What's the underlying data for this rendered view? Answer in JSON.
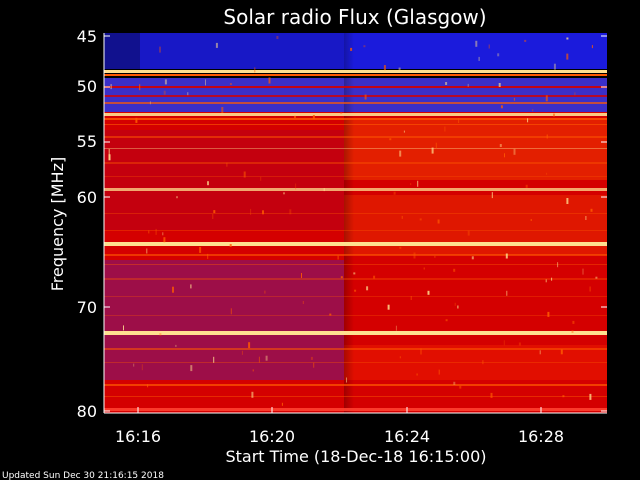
{
  "chart_data": {
    "type": "heatmap",
    "title": "Solar radio Flux (Glasgow)",
    "xlabel": "Start Time (18-Dec-18 16:15:00)",
    "ylabel": "Frequency [MHz]",
    "x_ticks": [
      "16:16",
      "16:20",
      "16:24",
      "16:28"
    ],
    "y_ticks": [
      "45",
      "50",
      "55",
      "60",
      "70",
      "80"
    ],
    "footer": "Updated Sun Dec 30 21:16:15 2018",
    "colors": {
      "background": "#000000",
      "low": "#1b1bdc",
      "mid": "#d40000",
      "high": "#ff5a00",
      "peak": "#ffe090"
    }
  }
}
